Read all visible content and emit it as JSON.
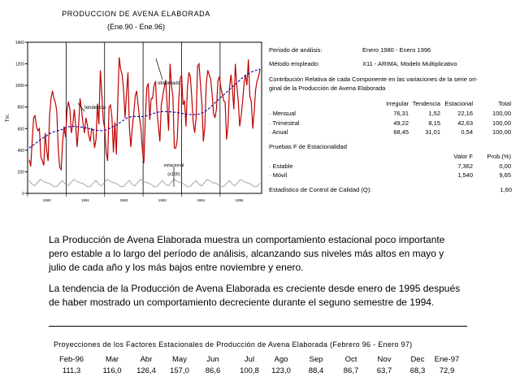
{
  "chart_data": {
    "type": "line",
    "title": "PRODUCCION DE AVENA ELABORADA",
    "subtitle": "(Ene.90 - Ene.96)",
    "ylabel": "Tm.",
    "ylim": [
      0,
      1400
    ],
    "yticks": [
      "1400",
      "1200",
      "1000",
      "800",
      "600",
      "400",
      "200",
      "0"
    ],
    "xticks": [
      "1990",
      "1991",
      "1992",
      "1993",
      "1994",
      "1995"
    ],
    "grid": "vertical",
    "annotations": [
      "observado",
      "tendencia",
      "estacional",
      "(x100)"
    ],
    "series": [
      {
        "color": "#c00000",
        "values": [
          310,
          250,
          480,
          700,
          720,
          620,
          580,
          600,
          340,
          300,
          260,
          560,
          400,
          300,
          720,
          880,
          950,
          880,
          840,
          760,
          410,
          240,
          220,
          480,
          620,
          520,
          760,
          850,
          780,
          560,
          640,
          780,
          620,
          430,
          620,
          880,
          780,
          650,
          560,
          700,
          640,
          540,
          480,
          600,
          580,
          420,
          500,
          830,
          640,
          1140,
          920,
          680,
          600,
          380,
          300,
          800,
          820,
          700,
          380,
          660,
          360,
          860,
          1260,
          1150,
          1100,
          960,
          700,
          920,
          1120,
          620,
          430,
          600,
          740,
          900,
          950,
          820,
          700,
          600,
          400,
          280,
          700,
          980,
          1020,
          680,
          880,
          880,
          1000,
          1040,
          760,
          620,
          480,
          820,
          900,
          980,
          1050,
          820,
          580,
          1200,
          1000,
          900,
          420,
          420,
          500,
          860,
          1060,
          1100,
          820,
          860,
          620,
          980,
          1120,
          1080,
          880,
          660,
          560,
          700,
          1180,
          1200,
          1000,
          820,
          480,
          620,
          1020,
          1140,
          1100,
          1060,
          920,
          740,
          700,
          780,
          1040,
          1080,
          980,
          920,
          860,
          840,
          500,
          640,
          980,
          1100,
          960,
          780,
          1200,
          1000,
          860,
          620,
          720,
          850,
          1020,
          1100,
          1000,
          1240,
          900,
          850,
          600,
          760,
          960,
          1040,
          1080,
          1150
        ]
      },
      {
        "color": "#0000b0",
        "values": [
          420,
          433,
          446,
          459,
          472,
          485,
          498,
          510,
          520,
          532,
          545,
          555,
          563,
          570,
          576,
          580,
          585,
          590,
          598,
          606,
          612,
          618,
          620,
          620,
          620,
          618,
          617,
          615,
          613,
          610,
          607,
          603,
          598,
          594,
          590,
          586,
          583,
          581,
          580,
          582,
          585,
          590,
          598,
          606,
          615,
          624,
          634,
          645,
          656,
          668,
          680,
          692,
          700,
          706,
          710,
          712,
          713,
          712,
          711,
          710,
          712,
          715,
          719,
          724,
          730,
          736,
          742,
          748,
          752,
          755,
          757,
          758,
          758,
          757,
          756,
          755,
          753,
          751,
          749,
          746,
          743,
          740,
          737,
          734,
          732,
          730,
          729,
          729,
          730,
          732,
          736,
          742,
          750,
          760,
          772,
          786,
          802,
          818,
          835,
          852,
          868,
          884,
          900,
          916,
          932,
          948,
          964,
          980,
          996,
          1012,
          1028,
          1044,
          1060,
          1074,
          1088,
          1100,
          1110,
          1120,
          1128,
          1134,
          1140,
          1148,
          1150
        ]
      },
      {
        "color": "#909090",
        "values": [
          120,
          85,
          70,
          100,
          130,
          115,
          100,
          95,
          80,
          60,
          65,
          95,
          120,
          85,
          70,
          100,
          130,
          115,
          100,
          95,
          80,
          60,
          65,
          95,
          120,
          85,
          70,
          100,
          130,
          115,
          100,
          95,
          80,
          60,
          65,
          95,
          120,
          85,
          70,
          100,
          130,
          115,
          100,
          95,
          80,
          60,
          65,
          95,
          120,
          85,
          70,
          100,
          130,
          115,
          100,
          95,
          80,
          60,
          65,
          95,
          120,
          85,
          70,
          100,
          130,
          115,
          100,
          95,
          80,
          60,
          65,
          95,
          120,
          85,
          70,
          100,
          130,
          115,
          100,
          95,
          80,
          60,
          65,
          95
        ]
      }
    ]
  },
  "info": {
    "periodo_label": "Periodo de análisis:",
    "periodo_value": "Enero 1980 - Enero 1996",
    "metodo_label": "Método empleado:",
    "metodo_value": "X11 - ARIMA, Modelo Multiplicativo",
    "contrib_line1": "Contribución Relativa de cada Componente en las variaciones de la serie ori-",
    "contrib_line2": "ginal de la Producción de Avena Elaborada",
    "contrib_headers": [
      "Irregular",
      "Tendencia",
      "Estacional",
      "Total"
    ],
    "contrib_rows": [
      {
        "label": "· Mensual",
        "values": [
          "76,31",
          "1,52",
          "22,16",
          "100,00"
        ]
      },
      {
        "label": "· Trimestral",
        "values": [
          "49,22",
          "8,15",
          "42,63",
          "100,00"
        ]
      },
      {
        "label": "· Anual",
        "values": [
          "68,45",
          "31,01",
          "0,54",
          "100,00"
        ]
      }
    ],
    "pruebas_title": "Pruebas F de Estacionalidad",
    "pruebas_headers": [
      "Valor F",
      "Prob.(%)"
    ],
    "pruebas_rows": [
      {
        "label": "· Estable",
        "values": [
          "7,362",
          "0,00"
        ]
      },
      {
        "label": "· Móvil",
        "values": [
          "1,540",
          "9,65"
        ]
      }
    ],
    "estadistico_label": "Estadístico de Control de Calidad (Q):",
    "estadistico_value": "1,60"
  },
  "text": {
    "para1_line1": "La Producción de Avena Elaborada muestra un comportamiento estacional poco importante",
    "para1_line2": "pero estable a lo largo del período de análisis, alcanzando sus niveles  más altos en mayo y",
    "para1_line3": "julio de cada año y los más bajos entre noviembre y enero.",
    "para2_line1": "La tendencia de la Producción de Avena Elaborada es creciente desde enero de 1995 después",
    "para2_line2": "de haber mostrado un comportamiento decreciente durante el seguno semestre de 1994."
  },
  "projections": {
    "title": "Proyecciones de los Factores Estacionales de Producción de Avena Elaborada (Febrero 96 - Enero 97)",
    "months": [
      "Feb-96",
      "Mar",
      "Abr",
      "May",
      "Jun",
      "Jul",
      "Ago",
      "Sep",
      "Oct",
      "Nov",
      "Dec",
      "Ene-97"
    ],
    "values": [
      "111,3",
      "116,0",
      "126,4",
      "157,0",
      "86,6",
      "100,8",
      "123,0",
      "88,4",
      "86,7",
      "63,7",
      "68,3",
      "72,9"
    ]
  }
}
